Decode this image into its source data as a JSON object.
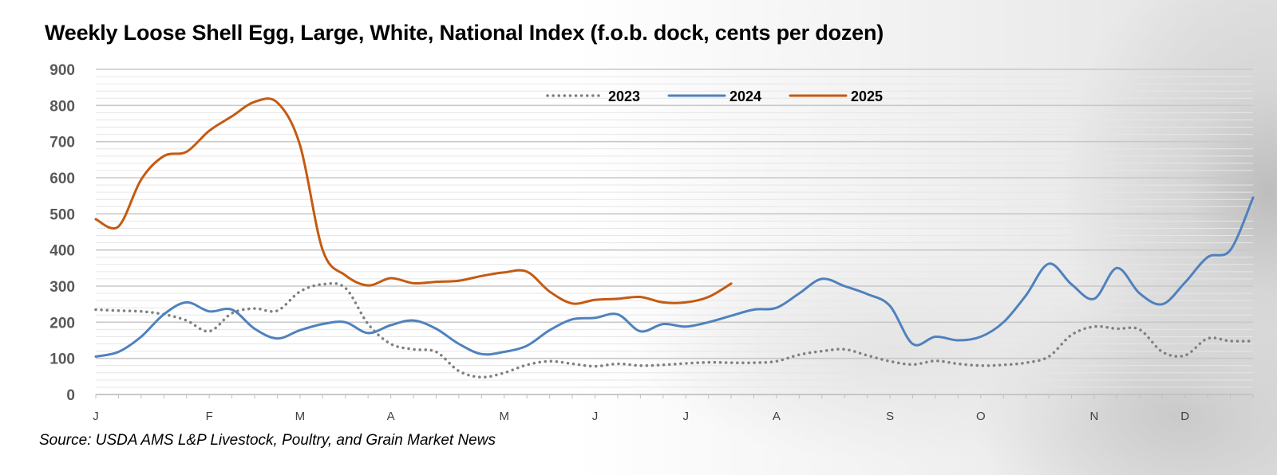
{
  "chart_data": {
    "type": "line",
    "title": "Weekly Loose Shell Egg, Large, White, National Index (f.o.b. dock, cents per dozen)",
    "source": "Source: USDA AMS L&P Livestock, Poultry, and Grain Market News",
    "xlabel": "",
    "ylabel": "",
    "ylim": [
      0,
      900
    ],
    "yticks": [
      0,
      100,
      200,
      300,
      400,
      500,
      600,
      700,
      800,
      900
    ],
    "xlim": [
      0,
      51
    ],
    "month_labels": [
      "J",
      "F",
      "M",
      "A",
      "M",
      "J",
      "J",
      "A",
      "S",
      "O",
      "N",
      "D"
    ],
    "month_weeks": [
      0,
      5,
      9,
      13,
      18,
      22,
      26,
      30,
      35,
      39,
      44,
      48
    ],
    "legend_position": "top-center",
    "series": [
      {
        "name": "2023",
        "color": "#808080",
        "style": "dotted",
        "x": [
          0,
          1,
          2,
          3,
          4,
          5,
          6,
          7,
          8,
          9,
          10,
          11,
          12,
          13,
          14,
          15,
          16,
          17,
          18,
          19,
          20,
          21,
          22,
          23,
          24,
          25,
          26,
          27,
          28,
          29,
          30,
          31,
          32,
          33,
          34,
          35,
          36,
          37,
          38,
          39,
          40,
          41,
          42,
          43,
          44,
          45,
          46,
          47,
          48,
          49,
          50,
          51
        ],
        "values": [
          235,
          232,
          230,
          222,
          205,
          175,
          225,
          238,
          232,
          285,
          305,
          295,
          195,
          140,
          125,
          118,
          65,
          48,
          60,
          82,
          92,
          85,
          78,
          85,
          80,
          82,
          86,
          89,
          88,
          88,
          92,
          110,
          120,
          125,
          108,
          92,
          83,
          93,
          85,
          80,
          82,
          88,
          105,
          165,
          188,
          182,
          180,
          118,
          108,
          155,
          148,
          148
        ]
      },
      {
        "name": "2024",
        "color": "#4f81bd",
        "style": "solid",
        "x": [
          0,
          1,
          2,
          3,
          4,
          5,
          6,
          7,
          8,
          9,
          10,
          11,
          12,
          13,
          14,
          15,
          16,
          17,
          18,
          19,
          20,
          21,
          22,
          23,
          24,
          25,
          26,
          27,
          28,
          29,
          30,
          31,
          32,
          33,
          34,
          35,
          36,
          37,
          38,
          39,
          40,
          41,
          42,
          43,
          44,
          45,
          46,
          47,
          48,
          49,
          50,
          51
        ],
        "values": [
          105,
          118,
          160,
          222,
          255,
          230,
          235,
          182,
          155,
          178,
          195,
          200,
          170,
          192,
          205,
          182,
          140,
          112,
          118,
          135,
          178,
          208,
          212,
          222,
          175,
          195,
          188,
          200,
          218,
          235,
          240,
          280,
          320,
          300,
          278,
          245,
          140,
          160,
          150,
          160,
          200,
          275,
          362,
          305,
          265,
          350,
          280,
          250,
          310,
          380,
          400,
          545
        ]
      },
      {
        "name": "2025",
        "color": "#c55a11",
        "style": "solid",
        "x": [
          0,
          1,
          2,
          3,
          4,
          5,
          6,
          7,
          8,
          9,
          10,
          11,
          12,
          13,
          14,
          15,
          16,
          17,
          18,
          19,
          20,
          21,
          22,
          23,
          24,
          25,
          26,
          27,
          28
        ],
        "values": [
          485,
          465,
          595,
          660,
          672,
          730,
          770,
          810,
          808,
          690,
          400,
          330,
          302,
          322,
          308,
          312,
          315,
          328,
          338,
          340,
          285,
          252,
          262,
          265,
          270,
          255,
          255,
          270,
          307
        ]
      }
    ]
  }
}
